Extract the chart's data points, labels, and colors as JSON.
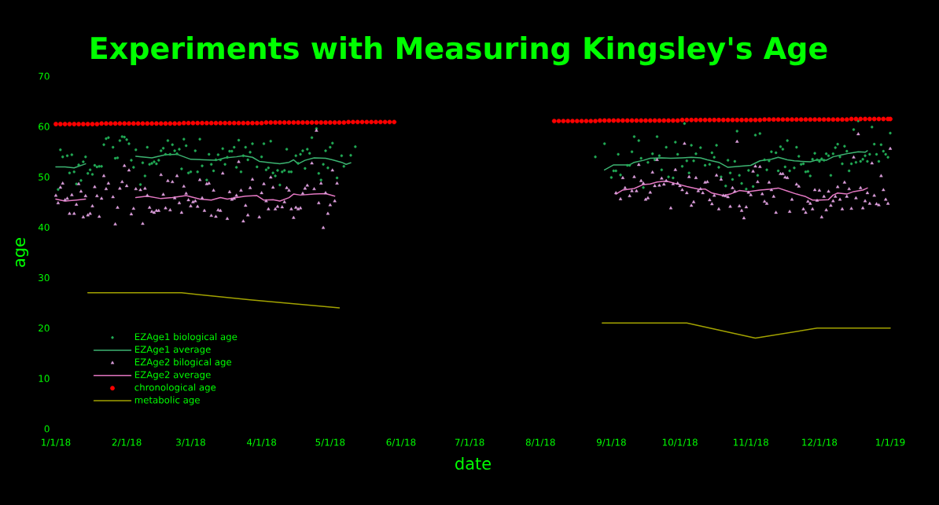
{
  "chart_data": {
    "type": "scatter",
    "title": "Experiments with Measuring Kingsley's Age",
    "xlabel": "date",
    "ylabel": "age",
    "xlim": [
      "2018-01-01",
      "2019-01-01"
    ],
    "xticks": [
      {
        "value": "2018-01-01",
        "label": "1/1/18"
      },
      {
        "value": "2018-02-01",
        "label": "2/1/18"
      },
      {
        "value": "2018-03-01",
        "label": "3/1/18"
      },
      {
        "value": "2018-04-01",
        "label": "4/1/18"
      },
      {
        "value": "2018-05-01",
        "label": "5/1/18"
      },
      {
        "value": "2018-06-01",
        "label": "6/1/18"
      },
      {
        "value": "2018-07-01",
        "label": "7/1/18"
      },
      {
        "value": "2018-08-01",
        "label": "8/1/18"
      },
      {
        "value": "2018-09-01",
        "label": "9/1/18"
      },
      {
        "value": "2018-10-01",
        "label": "10/1/18"
      },
      {
        "value": "2018-11-01",
        "label": "11/1/18"
      },
      {
        "value": "2018-12-01",
        "label": "12/1/18"
      },
      {
        "value": "2019-01-01",
        "label": "1/1/19"
      }
    ],
    "ylim": [
      0,
      70
    ],
    "yticks": [
      0,
      10,
      20,
      30,
      40,
      50,
      60,
      70
    ],
    "legend": "bottom left",
    "series": [
      {
        "name": "EZAge1 biological age",
        "color": "#22aa55",
        "marker": "circle",
        "x": [
          "2018-01-02",
          "2018-01-03",
          "2018-01-04",
          "2018-01-06",
          "2018-01-07",
          "2018-01-08",
          "2018-01-09",
          "2018-01-10",
          "2018-01-11",
          "2018-01-12",
          "2018-01-13",
          "2018-01-14",
          "2018-01-15",
          "2018-01-16",
          "2018-01-17",
          "2018-01-18",
          "2018-01-19",
          "2018-01-20",
          "2018-01-21",
          "2018-01-22",
          "2018-01-23",
          "2018-01-24",
          "2018-01-26",
          "2018-01-27",
          "2018-01-28",
          "2018-01-29",
          "2018-01-30",
          "2018-01-31",
          "2018-02-01",
          "2018-02-02",
          "2018-02-03",
          "2018-02-04",
          "2018-02-05",
          "2018-02-07",
          "2018-02-08",
          "2018-02-09",
          "2018-02-10",
          "2018-02-11",
          "2018-02-12",
          "2018-02-13",
          "2018-02-14",
          "2018-02-15",
          "2018-02-16",
          "2018-02-17",
          "2018-02-18",
          "2018-02-19",
          "2018-02-20",
          "2018-02-21",
          "2018-02-22",
          "2018-02-23",
          "2018-02-24",
          "2018-02-25",
          "2018-02-26",
          "2018-02-27",
          "2018-02-28",
          "2018-03-01",
          "2018-03-03",
          "2018-03-04",
          "2018-03-05",
          "2018-03-06",
          "2018-03-08",
          "2018-03-09",
          "2018-03-10",
          "2018-03-11",
          "2018-03-12",
          "2018-03-13",
          "2018-03-14",
          "2018-03-15",
          "2018-03-16",
          "2018-03-17",
          "2018-03-18",
          "2018-03-19",
          "2018-03-20",
          "2018-03-21",
          "2018-03-22",
          "2018-03-23",
          "2018-03-24",
          "2018-03-25",
          "2018-03-26",
          "2018-03-27",
          "2018-03-28",
          "2018-03-30",
          "2018-04-01",
          "2018-04-02",
          "2018-04-03",
          "2018-04-04",
          "2018-04-05",
          "2018-04-06",
          "2018-04-07",
          "2018-04-08",
          "2018-04-09",
          "2018-04-10",
          "2018-04-11",
          "2018-04-12",
          "2018-04-13",
          "2018-04-14",
          "2018-04-16",
          "2018-04-17",
          "2018-04-18",
          "2018-04-19",
          "2018-04-20",
          "2018-04-21",
          "2018-04-22",
          "2018-04-23",
          "2018-04-25",
          "2018-04-26",
          "2018-04-27",
          "2018-04-28",
          "2018-04-29",
          "2018-04-30",
          "2018-05-01",
          "2018-05-02",
          "2018-05-04",
          "2018-05-06",
          "2018-05-07",
          "2018-05-10",
          "2018-05-12",
          "2018-08-25",
          "2018-08-29",
          "2018-09-01",
          "2018-09-02",
          "2018-09-03",
          "2018-09-04",
          "2018-09-05",
          "2018-09-08",
          "2018-09-09",
          "2018-09-10",
          "2018-09-11",
          "2018-09-13",
          "2018-09-14",
          "2018-09-15",
          "2018-09-17",
          "2018-09-19",
          "2018-09-20",
          "2018-09-21",
          "2018-09-22",
          "2018-09-23",
          "2018-09-25",
          "2018-09-26",
          "2018-09-28",
          "2018-09-29",
          "2018-09-30",
          "2018-10-02",
          "2018-10-03",
          "2018-10-04",
          "2018-10-05",
          "2018-10-06",
          "2018-10-07",
          "2018-10-08",
          "2018-10-10",
          "2018-10-12",
          "2018-10-14",
          "2018-10-15",
          "2018-10-16",
          "2018-10-17",
          "2018-10-18",
          "2018-10-19",
          "2018-10-21",
          "2018-10-22",
          "2018-10-23",
          "2018-10-24",
          "2018-10-25",
          "2018-10-26",
          "2018-10-27",
          "2018-10-28",
          "2018-10-30",
          "2018-10-31",
          "2018-11-02",
          "2018-11-03",
          "2018-11-04",
          "2018-11-05",
          "2018-11-07",
          "2018-11-08",
          "2018-11-09",
          "2018-11-10",
          "2018-11-12",
          "2018-11-13",
          "2018-11-14",
          "2018-11-15",
          "2018-11-16",
          "2018-11-17",
          "2018-11-18",
          "2018-11-20",
          "2018-11-21",
          "2018-11-22",
          "2018-11-23",
          "2018-11-24",
          "2018-11-25",
          "2018-11-26",
          "2018-11-27",
          "2018-11-28",
          "2018-11-29",
          "2018-11-30",
          "2018-12-01",
          "2018-12-02",
          "2018-12-03",
          "2018-12-04",
          "2018-12-05",
          "2018-12-06",
          "2018-12-07",
          "2018-12-08",
          "2018-12-09",
          "2018-12-10",
          "2018-12-11",
          "2018-12-12",
          "2018-12-13",
          "2018-12-14",
          "2018-12-15",
          "2018-12-16",
          "2018-12-17",
          "2018-12-18",
          "2018-12-19",
          "2018-12-20",
          "2018-12-21",
          "2018-12-22",
          "2018-12-23",
          "2018-12-24",
          "2018-12-25",
          "2018-12-26",
          "2018-12-27",
          "2018-12-28",
          "2018-12-29",
          "2018-12-30",
          "2018-12-31",
          "2019-01-01"
        ],
        "values": [
          47.5,
          55.4,
          54.0,
          54.2,
          50.8,
          54.4,
          51.0,
          48.6,
          52.4,
          49.3,
          53.0,
          54.0,
          50.7,
          51.4,
          50.5,
          52.3,
          52.0,
          52.1,
          52.1,
          56.4,
          57.6,
          57.8,
          55.9,
          53.7,
          53.8,
          57.2,
          58.0,
          57.9,
          57.4,
          56.6,
          53.3,
          51.9,
          55.4,
          48.5,
          52.8,
          50.2,
          55.9,
          52.5,
          52.7,
          53.0,
          52.6,
          53.3,
          55.2,
          55.7,
          54.5,
          57.2,
          54.5,
          56.4,
          55.2,
          54.6,
          55.5,
          51.6,
          57.5,
          56.2,
          50.8,
          51.0,
          55.2,
          51.0,
          57.5,
          52.2,
          49.4,
          54.5,
          52.5,
          51.2,
          53.4,
          54.4,
          53.4,
          55.6,
          52.5,
          53.9,
          55.1,
          55.1,
          55.9,
          51.9,
          57.3,
          51.0,
          54.2,
          55.9,
          53.4,
          54.9,
          56.6,
          52.0,
          54.0,
          56.6,
          51.4,
          51.8,
          57.1,
          50.8,
          50.2,
          51.3,
          48.4,
          51.0,
          51.3,
          55.5,
          51.0,
          51.0,
          54.2,
          52.7,
          54.5,
          55.2,
          51.7,
          55.5,
          54.7,
          57.8,
          59.6,
          50.7,
          49.4,
          52.5,
          55.2,
          51.8,
          55.9,
          56.7,
          49.8,
          54.2,
          52.1,
          54.3,
          56.0,
          54.0,
          56.6,
          49.9,
          51.2,
          51.2,
          54.5,
          50.4,
          52.3,
          52.3,
          55.0,
          58.0,
          57.2,
          53.7,
          47.9,
          52.9,
          54.6,
          53.4,
          58.0,
          54.2,
          51.4,
          55.9,
          50.0,
          49.8,
          56.9,
          54.5,
          52.1,
          60.6,
          53.2,
          50.8,
          56.3,
          53.2,
          54.6,
          55.8,
          52.3,
          52.5,
          54.8,
          53.9,
          56.3,
          51.9,
          50.0,
          48.2,
          53.3,
          50.8,
          49.5,
          53.1,
          59.1,
          50.3,
          48.7,
          47.6,
          51.3,
          48.1,
          58.3,
          50.3,
          58.6,
          53.4,
          51.4,
          53.2,
          55.0,
          54.8,
          51.2,
          56.0,
          55.5,
          52.0,
          57.2,
          51.2,
          51.8,
          55.9,
          54.1,
          52.5,
          52.6,
          51.0,
          51.1,
          50.2,
          53.5,
          54.7,
          53.4,
          53.1,
          53.6,
          53.3,
          54.6,
          54.2,
          50.3,
          54.6,
          55.8,
          56.5,
          54.0,
          52.6,
          56.1,
          55.1,
          51.2,
          52.6,
          59.4,
          52.9,
          61.1,
          53.1,
          53.5,
          54.2,
          53.1,
          54.5,
          59.9,
          56.5,
          54.5,
          53.1,
          56.4,
          55.1,
          54.5,
          53.9,
          58.7
        ]
      },
      {
        "name": "EZAge1 average",
        "type": "line",
        "color": "#3cb371",
        "x": [
          "2018-01-01",
          "2018-01-05",
          "2018-01-09",
          "2018-01-14",
          "2018-01-25",
          "2018-02-05",
          "2018-02-12",
          "2018-02-18",
          "2018-02-23",
          "2018-03-01",
          "2018-03-07",
          "2018-03-12",
          "2018-03-16",
          "2018-03-21",
          "2018-03-24",
          "2018-03-28",
          "2018-03-31",
          "2018-04-05",
          "2018-04-09",
          "2018-04-13",
          "2018-04-15",
          "2018-04-17",
          "2018-04-20",
          "2018-04-24",
          "2018-04-29",
          "2018-05-02",
          "2018-05-06",
          "2018-05-08",
          "2018-05-10",
          "2018-06-30",
          "2018-08-29",
          "2018-09-02",
          "2018-09-05",
          "2018-09-09",
          "2018-09-11",
          "2018-09-15",
          "2018-09-18",
          "2018-09-23",
          "2018-09-27",
          "2018-10-02",
          "2018-10-06",
          "2018-10-10",
          "2018-10-13",
          "2018-10-18",
          "2018-10-22",
          "2018-10-27",
          "2018-11-01",
          "2018-11-05",
          "2018-11-10",
          "2018-11-13",
          "2018-11-17",
          "2018-11-20",
          "2018-11-23",
          "2018-11-27",
          "2018-11-30",
          "2018-12-04",
          "2018-12-07",
          "2018-12-11",
          "2018-12-14",
          "2018-12-18",
          "2018-12-21",
          "2018-12-22"
        ],
        "values": [
          52.0,
          52.0,
          51.8,
          52.6,
          null,
          54.1,
          53.8,
          54.4,
          54.5,
          53.5,
          53.4,
          53.3,
          53.8,
          54.0,
          54.2,
          53.9,
          53.1,
          52.8,
          52.6,
          52.9,
          53.4,
          52.6,
          53.3,
          53.8,
          53.7,
          53.4,
          52.9,
          52.5,
          52.8,
          null,
          51.4,
          52.4,
          52.4,
          52.4,
          52.9,
          53.3,
          53.7,
          53.8,
          53.7,
          53.8,
          53.9,
          53.8,
          53.4,
          52.9,
          51.9,
          52.1,
          52.3,
          53.2,
          53.5,
          53.9,
          53.4,
          53.2,
          53.1,
          53.0,
          53.4,
          53.3,
          54.0,
          54.4,
          54.7,
          55.0,
          54.9,
          55.2
        ]
      },
      {
        "name": "EZAge2 bilogical age",
        "color": "#dda0dd",
        "marker": "triangle",
        "x": [
          "2018-01-01",
          "2018-01-02",
          "2018-01-03",
          "2018-01-04",
          "2018-01-05",
          "2018-01-06",
          "2018-01-07",
          "2018-01-08",
          "2018-01-09",
          "2018-01-10",
          "2018-01-11",
          "2018-01-12",
          "2018-01-13",
          "2018-01-14",
          "2018-01-15",
          "2018-01-16",
          "2018-01-17",
          "2018-01-18",
          "2018-01-19",
          "2018-01-20",
          "2018-01-21",
          "2018-01-22",
          "2018-01-23",
          "2018-01-24",
          "2018-01-26",
          "2018-01-27",
          "2018-01-28",
          "2018-01-29",
          "2018-01-30",
          "2018-01-31",
          "2018-02-01",
          "2018-02-02",
          "2018-02-03",
          "2018-02-04",
          "2018-02-05",
          "2018-02-07",
          "2018-02-08",
          "2018-02-09",
          "2018-02-10",
          "2018-02-11",
          "2018-02-12",
          "2018-02-13",
          "2018-02-14",
          "2018-02-15",
          "2018-02-16",
          "2018-02-17",
          "2018-02-18",
          "2018-02-19",
          "2018-02-20",
          "2018-02-21",
          "2018-02-22",
          "2018-02-23",
          "2018-02-24",
          "2018-02-25",
          "2018-02-26",
          "2018-02-27",
          "2018-02-28",
          "2018-03-01",
          "2018-03-02",
          "2018-03-03",
          "2018-03-04",
          "2018-03-05",
          "2018-03-06",
          "2018-03-07",
          "2018-03-08",
          "2018-03-09",
          "2018-03-10",
          "2018-03-11",
          "2018-03-12",
          "2018-03-13",
          "2018-03-14",
          "2018-03-15",
          "2018-03-17",
          "2018-03-18",
          "2018-03-19",
          "2018-03-20",
          "2018-03-21",
          "2018-03-22",
          "2018-03-23",
          "2018-03-24",
          "2018-03-25",
          "2018-03-26",
          "2018-03-27",
          "2018-03-28",
          "2018-03-31",
          "2018-04-01",
          "2018-04-02",
          "2018-04-03",
          "2018-04-04",
          "2018-04-05",
          "2018-04-06",
          "2018-04-07",
          "2018-04-08",
          "2018-04-10",
          "2018-04-11",
          "2018-04-12",
          "2018-04-13",
          "2018-04-14",
          "2018-04-15",
          "2018-04-16",
          "2018-04-17",
          "2018-04-18",
          "2018-04-19",
          "2018-04-20",
          "2018-04-21",
          "2018-04-23",
          "2018-04-24",
          "2018-04-25",
          "2018-04-26",
          "2018-04-27",
          "2018-04-28",
          "2018-04-29",
          "2018-04-30",
          "2018-05-01",
          "2018-05-02",
          "2018-05-03",
          "2018-05-04",
          "2018-09-03",
          "2018-09-05",
          "2018-09-06",
          "2018-09-07",
          "2018-09-09",
          "2018-09-10",
          "2018-09-11",
          "2018-09-12",
          "2018-09-13",
          "2018-09-14",
          "2018-09-15",
          "2018-09-16",
          "2018-09-17",
          "2018-09-18",
          "2018-09-19",
          "2018-09-20",
          "2018-09-21",
          "2018-09-22",
          "2018-09-23",
          "2018-09-24",
          "2018-09-25",
          "2018-09-27",
          "2018-09-28",
          "2018-09-29",
          "2018-09-30",
          "2018-10-01",
          "2018-10-02",
          "2018-10-03",
          "2018-10-04",
          "2018-10-05",
          "2018-10-06",
          "2018-10-07",
          "2018-10-08",
          "2018-10-09",
          "2018-10-10",
          "2018-10-11",
          "2018-10-12",
          "2018-10-13",
          "2018-10-14",
          "2018-10-15",
          "2018-10-16",
          "2018-10-17",
          "2018-10-18",
          "2018-10-19",
          "2018-10-20",
          "2018-10-21",
          "2018-10-22",
          "2018-10-23",
          "2018-10-24",
          "2018-10-25",
          "2018-10-26",
          "2018-10-27",
          "2018-10-28",
          "2018-10-29",
          "2018-10-30",
          "2018-10-31",
          "2018-11-01",
          "2018-11-02",
          "2018-11-03",
          "2018-11-04",
          "2018-11-05",
          "2018-11-06",
          "2018-11-07",
          "2018-11-08",
          "2018-11-09",
          "2018-11-10",
          "2018-11-11",
          "2018-11-12",
          "2018-11-14",
          "2018-11-15",
          "2018-11-16",
          "2018-11-17",
          "2018-11-18",
          "2018-11-19",
          "2018-11-21",
          "2018-11-22",
          "2018-11-24",
          "2018-11-25",
          "2018-11-26",
          "2018-11-27",
          "2018-11-28",
          "2018-11-29",
          "2018-11-30",
          "2018-12-01",
          "2018-12-02",
          "2018-12-03",
          "2018-12-04",
          "2018-12-05",
          "2018-12-06",
          "2018-12-07",
          "2018-12-08",
          "2018-12-09",
          "2018-12-10",
          "2018-12-11",
          "2018-12-12",
          "2018-12-13",
          "2018-12-14",
          "2018-12-15",
          "2018-12-16",
          "2018-12-17",
          "2018-12-18",
          "2018-12-19",
          "2018-12-20",
          "2018-12-21",
          "2018-12-22",
          "2018-12-23",
          "2018-12-24",
          "2018-12-25",
          "2018-12-26",
          "2018-12-27",
          "2018-12-28",
          "2018-12-29",
          "2018-12-30",
          "2018-12-31",
          "2019-01-01"
        ],
        "values": [
          46.3,
          44.8,
          47.9,
          48.7,
          45.4,
          45.7,
          42.7,
          46.4,
          42.7,
          44.5,
          48.6,
          47.1,
          42.0,
          46.2,
          42.4,
          42.7,
          44.2,
          48.0,
          46.2,
          42.1,
          45.7,
          50.2,
          47.6,
          48.7,
          46.0,
          40.6,
          43.9,
          47.7,
          49.0,
          52.2,
          48.2,
          51.3,
          42.6,
          43.7,
          47.6,
          47.4,
          40.7,
          47.7,
          46.3,
          43.9,
          43.1,
          42.9,
          43.3,
          43.3,
          50.4,
          46.5,
          43.8,
          49.2,
          43.4,
          49.0,
          45.8,
          50.2,
          44.8,
          42.9,
          48.1,
          46.7,
          45.4,
          44.2,
          45.0,
          45.2,
          44.1,
          49.4,
          45.8,
          43.3,
          48.6,
          48.7,
          42.3,
          47.3,
          42.1,
          43.4,
          43.3,
          50.7,
          41.7,
          47.0,
          45.5,
          45.7,
          46.3,
          53.0,
          47.3,
          41.2,
          44.3,
          42.4,
          47.8,
          49.5,
          42.0,
          46.8,
          48.6,
          45.2,
          43.6,
          49.9,
          47.9,
          43.6,
          44.1,
          44.0,
          45.0,
          47.8,
          47.3,
          43.6,
          41.9,
          43.9,
          43.6,
          43.8,
          46.7,
          47.7,
          48.3,
          52.7,
          47.6,
          59.2,
          44.8,
          48.7,
          39.9,
          46.8,
          42.7,
          44.4,
          51.3,
          45.2,
          48.7,
          46.8,
          45.6,
          49.8,
          47.8,
          46.2,
          47.2,
          50.0,
          47.2,
          52.4,
          49.2,
          48.7,
          45.5,
          45.8,
          46.9,
          50.9,
          48.2,
          53.4,
          48.3,
          49.7,
          48.5,
          49.2,
          43.8,
          48.6,
          51.4,
          48.7,
          48.2,
          47.4,
          56.6,
          46.8,
          50.0,
          44.3,
          45.0,
          49.8,
          47.2,
          47.6,
          46.8,
          48.9,
          49.0,
          45.4,
          44.6,
          46.3,
          50.3,
          43.6,
          49.5,
          46.3,
          46.2,
          46.0,
          44.1,
          47.8,
          47.1,
          57.0,
          44.2,
          43.3,
          41.8,
          44.0,
          46.9,
          46.4,
          51.1,
          52.1,
          49.0,
          52.0,
          46.6,
          45.1,
          44.7,
          48.9,
          47.4,
          46.1,
          42.9,
          50.6,
          50.6,
          49.9,
          49.8,
          43.1,
          45.5,
          48.5,
          48.1,
          43.6,
          42.9,
          45.1,
          44.7,
          43.6,
          47.4,
          45.3,
          47.3,
          42.0,
          46.1,
          43.4,
          47.1,
          44.3,
          45.2,
          46.1,
          48.0,
          45.5,
          43.6,
          48.9,
          46.1,
          47.6,
          43.7,
          53.9,
          45.8,
          58.5,
          47.8,
          43.8,
          45.2,
          46.8,
          44.7,
          52.7,
          46.3,
          44.6,
          44.4,
          50.2,
          47.4,
          45.5,
          44.7,
          55.6
        ]
      },
      {
        "name": "EZAge2 average",
        "type": "line",
        "color": "#e377c2",
        "x": [
          "2018-01-01",
          "2018-01-05",
          "2018-01-10",
          "2018-01-14",
          "2018-01-25",
          "2018-02-05",
          "2018-02-10",
          "2018-02-16",
          "2018-02-21",
          "2018-02-27",
          "2018-03-05",
          "2018-03-10",
          "2018-03-14",
          "2018-03-17",
          "2018-03-21",
          "2018-03-25",
          "2018-03-30",
          "2018-04-02",
          "2018-04-06",
          "2018-04-09",
          "2018-04-13",
          "2018-04-15",
          "2018-04-18",
          "2018-04-24",
          "2018-04-29",
          "2018-05-03",
          "2018-06-30",
          "2018-09-03",
          "2018-09-06",
          "2018-09-11",
          "2018-09-15",
          "2018-09-18",
          "2018-09-21",
          "2018-09-25",
          "2018-09-29",
          "2018-10-04",
          "2018-10-09",
          "2018-10-12",
          "2018-10-15",
          "2018-10-20",
          "2018-10-23",
          "2018-10-27",
          "2018-10-31",
          "2018-11-05",
          "2018-11-10",
          "2018-11-13",
          "2018-11-17",
          "2018-11-21",
          "2018-11-25",
          "2018-11-28",
          "2018-12-01",
          "2018-12-05",
          "2018-12-07",
          "2018-12-09",
          "2018-12-13",
          "2018-12-16",
          "2018-12-20",
          "2018-12-22"
        ],
        "values": [
          45.6,
          45.2,
          45.4,
          45.6,
          null,
          45.9,
          46.2,
          45.7,
          45.9,
          46.3,
          45.6,
          45.4,
          45.9,
          45.6,
          45.9,
          46.2,
          46.3,
          45.4,
          45.5,
          45.2,
          45.9,
          46.6,
          46.4,
          46.6,
          46.7,
          46.2,
          null,
          46.6,
          47.4,
          47.7,
          48.5,
          48.6,
          49.0,
          49.2,
          48.7,
          48.1,
          47.6,
          47.6,
          46.8,
          46.3,
          46.6,
          47.3,
          47.1,
          47.4,
          47.6,
          47.8,
          47.2,
          46.6,
          46.1,
          45.4,
          45.4,
          45.5,
          46.4,
          46.8,
          46.6,
          47.1,
          47.4,
          47.8
        ]
      },
      {
        "name": "chronological age",
        "color": "#ff0000",
        "marker": "circle",
        "x": [
          "2018-01-01",
          "2018-01-03",
          "2018-01-05",
          "2018-01-07",
          "2018-01-09",
          "2018-01-11",
          "2018-01-13",
          "2018-01-15",
          "2018-01-17",
          "2018-01-19",
          "2018-01-21",
          "2018-01-23",
          "2018-01-25",
          "2018-01-27",
          "2018-01-29",
          "2018-01-31",
          "2018-02-02",
          "2018-02-04",
          "2018-02-06",
          "2018-02-08",
          "2018-02-10",
          "2018-02-12",
          "2018-02-14",
          "2018-02-16",
          "2018-02-18",
          "2018-02-20",
          "2018-02-22",
          "2018-02-24",
          "2018-02-26",
          "2018-02-28",
          "2018-03-02",
          "2018-03-04",
          "2018-03-06",
          "2018-03-08",
          "2018-03-10",
          "2018-03-12",
          "2018-03-14",
          "2018-03-16",
          "2018-03-18",
          "2018-03-20",
          "2018-03-22",
          "2018-03-24",
          "2018-03-26",
          "2018-03-28",
          "2018-03-30",
          "2018-04-01",
          "2018-04-03",
          "2018-04-05",
          "2018-04-07",
          "2018-04-09",
          "2018-04-11",
          "2018-04-13",
          "2018-04-15",
          "2018-04-17",
          "2018-04-19",
          "2018-04-21",
          "2018-04-23",
          "2018-04-25",
          "2018-04-27",
          "2018-04-29",
          "2018-05-01",
          "2018-05-03",
          "2018-05-05",
          "2018-05-07",
          "2018-05-09",
          "2018-05-11",
          "2018-05-13",
          "2018-05-15",
          "2018-05-17",
          "2018-05-19",
          "2018-05-21",
          "2018-05-23",
          "2018-05-25",
          "2018-05-27",
          "2018-05-29",
          "2018-08-07",
          "2018-08-09",
          "2018-08-11",
          "2018-08-13",
          "2018-08-15",
          "2018-08-17",
          "2018-08-19",
          "2018-08-21",
          "2018-08-23",
          "2018-08-25",
          "2018-08-27",
          "2018-08-29",
          "2018-08-31",
          "2018-09-02",
          "2018-09-04",
          "2018-09-06",
          "2018-09-08",
          "2018-09-10",
          "2018-09-12",
          "2018-09-14",
          "2018-09-16",
          "2018-09-18",
          "2018-09-20",
          "2018-09-22",
          "2018-09-24",
          "2018-09-26",
          "2018-09-28",
          "2018-09-30",
          "2018-10-02",
          "2018-10-04",
          "2018-10-06",
          "2018-10-08",
          "2018-10-10",
          "2018-10-12",
          "2018-10-14",
          "2018-10-16",
          "2018-10-18",
          "2018-10-20",
          "2018-10-22",
          "2018-10-24",
          "2018-10-26",
          "2018-10-28",
          "2018-10-30",
          "2018-11-01",
          "2018-11-03",
          "2018-11-05",
          "2018-11-07",
          "2018-11-09",
          "2018-11-11",
          "2018-11-13",
          "2018-11-15",
          "2018-11-17",
          "2018-11-19",
          "2018-11-21",
          "2018-11-23",
          "2018-11-25",
          "2018-11-27",
          "2018-11-29",
          "2018-12-01",
          "2018-12-03",
          "2018-12-05",
          "2018-12-07",
          "2018-12-09",
          "2018-12-11",
          "2018-12-13",
          "2018-12-15",
          "2018-12-17",
          "2018-12-19",
          "2018-12-21",
          "2018-12-23",
          "2018-12-25",
          "2018-12-27",
          "2018-12-29",
          "2018-12-31",
          "2019-01-01"
        ],
        "values": [
          60.5,
          60.5,
          60.5,
          60.5,
          60.5,
          60.5,
          60.5,
          60.5,
          60.5,
          60.5,
          60.6,
          60.6,
          60.6,
          60.6,
          60.6,
          60.6,
          60.6,
          60.6,
          60.6,
          60.6,
          60.6,
          60.6,
          60.6,
          60.6,
          60.6,
          60.6,
          60.6,
          60.6,
          60.7,
          60.7,
          60.7,
          60.7,
          60.7,
          60.7,
          60.7,
          60.7,
          60.7,
          60.7,
          60.7,
          60.7,
          60.7,
          60.7,
          60.7,
          60.7,
          60.7,
          60.7,
          60.8,
          60.8,
          60.8,
          60.8,
          60.8,
          60.8,
          60.8,
          60.8,
          60.8,
          60.8,
          60.8,
          60.8,
          60.8,
          60.8,
          60.8,
          60.8,
          60.8,
          60.8,
          60.9,
          60.9,
          60.9,
          60.9,
          60.9,
          60.9,
          60.9,
          60.9,
          60.9,
          60.9,
          60.9,
          61.1,
          61.1,
          61.1,
          61.1,
          61.1,
          61.1,
          61.1,
          61.1,
          61.1,
          61.1,
          61.2,
          61.2,
          61.2,
          61.2,
          61.2,
          61.2,
          61.2,
          61.2,
          61.2,
          61.2,
          61.2,
          61.2,
          61.2,
          61.2,
          61.2,
          61.2,
          61.2,
          61.2,
          61.3,
          61.3,
          61.3,
          61.3,
          61.3,
          61.3,
          61.3,
          61.3,
          61.3,
          61.3,
          61.3,
          61.3,
          61.3,
          61.3,
          61.3,
          61.3,
          61.3,
          61.3,
          61.4,
          61.4,
          61.4,
          61.4,
          61.4,
          61.4,
          61.4,
          61.4,
          61.4,
          61.4,
          61.4,
          61.4,
          61.4,
          61.4,
          61.4,
          61.4,
          61.4,
          61.4,
          61.4,
          61.5,
          61.5,
          61.5,
          61.5,
          61.5,
          61.5,
          61.5,
          61.5,
          61.5,
          61.5
        ]
      },
      {
        "name": "metabolic age",
        "type": "line",
        "color": "#a3a300",
        "x": [
          "2018-01-15",
          "2018-02-25",
          "2018-03-27",
          "2018-05-05",
          "2018-06-30",
          "2018-08-28",
          "2018-10-04",
          "2018-11-03",
          "2018-11-30",
          "2019-01-01"
        ],
        "values": [
          27,
          27,
          25.6,
          24,
          null,
          21,
          21,
          18,
          20,
          20
        ]
      }
    ]
  }
}
